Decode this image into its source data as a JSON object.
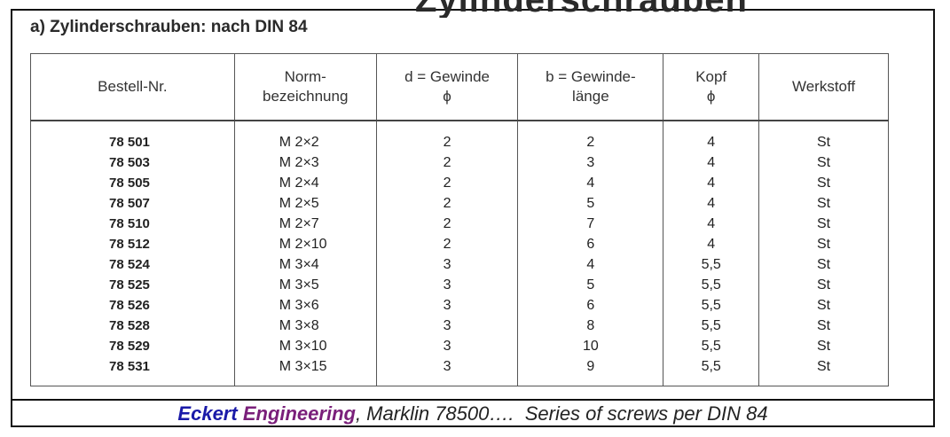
{
  "header_fragment": "Zylinderschrauben",
  "section_title": "a) Zylinderschrauben: nach DIN 84",
  "columns": [
    {
      "line1": "Bestell-Nr.",
      "line2": ""
    },
    {
      "line1": "Norm-",
      "line2": "bezeichnung"
    },
    {
      "line1": "d = Gewinde",
      "line2": "ϕ"
    },
    {
      "line1": "b = Gewinde-",
      "line2": "länge"
    },
    {
      "line1": "Kopf",
      "line2": "ϕ"
    },
    {
      "line1": "Werkstoff",
      "line2": ""
    }
  ],
  "rows": [
    [
      "78 501",
      "M 2×2",
      "2",
      "2",
      "4",
      "St"
    ],
    [
      "78 503",
      "M 2×3",
      "2",
      "3",
      "4",
      "St"
    ],
    [
      "78 505",
      "M 2×4",
      "2",
      "4",
      "4",
      "St"
    ],
    [
      "78 507",
      "M 2×5",
      "2",
      "5",
      "4",
      "St"
    ],
    [
      "78 510",
      "M 2×7",
      "2",
      "7",
      "4",
      "St"
    ],
    [
      "78 512",
      "M 2×10",
      "2",
      "6",
      "4",
      "St"
    ],
    [
      "78 524",
      "M 3×4",
      "3",
      "4",
      "5,5",
      "St"
    ],
    [
      "78 525",
      "M 3×5",
      "3",
      "5",
      "5,5",
      "St"
    ],
    [
      "78 526",
      "M 3×6",
      "3",
      "6",
      "5,5",
      "St"
    ],
    [
      "78 528",
      "M 3×8",
      "3",
      "8",
      "5,5",
      "St"
    ],
    [
      "78 529",
      "M 3×10",
      "3",
      "10",
      "5,5",
      "St"
    ],
    [
      "78 531",
      "M 3×15",
      "3",
      "9",
      "5,5",
      "St"
    ]
  ],
  "caption": {
    "company_first": "Eckert",
    "company_second": "Engineering",
    "rest": ", Marklin 78500….  Series of screws per DIN 84"
  }
}
